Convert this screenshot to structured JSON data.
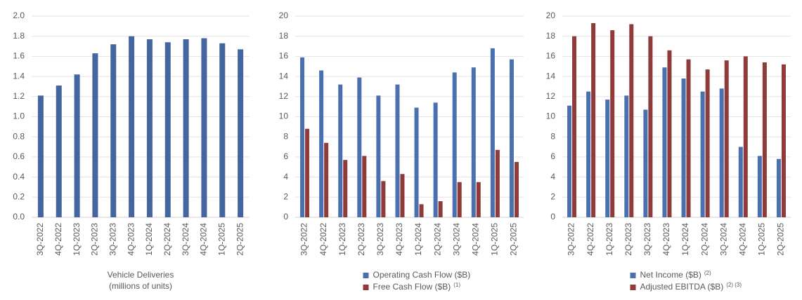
{
  "chart_data": [
    {
      "type": "bar",
      "categories": [
        "3Q-2022",
        "4Q-2022",
        "1Q-2023",
        "2Q-2023",
        "3Q-2023",
        "4Q-2023",
        "1Q-2024",
        "2Q-2024",
        "3Q-2024",
        "4Q-2024",
        "1Q-2025",
        "2Q-2025"
      ],
      "series": [
        {
          "name": null,
          "color": "#44659e",
          "values": [
            1.21,
            1.31,
            1.42,
            1.63,
            1.72,
            1.8,
            1.77,
            1.74,
            1.77,
            1.78,
            1.73,
            1.67
          ]
        }
      ],
      "xlabel": [
        "Vehicle Deliveries",
        "(millions of units)"
      ],
      "ylim": [
        0,
        2
      ],
      "yticks": [
        {
          "value": 0,
          "label": "0.0"
        },
        0.2,
        0.4,
        0.6,
        0.8,
        {
          "value": 1,
          "label": "1.0"
        },
        1.2,
        1.4,
        1.6,
        1.8,
        {
          "value": 2,
          "label": "2.0"
        }
      ],
      "grid": true
    },
    {
      "type": "bar",
      "categories": [
        "3Q-2022",
        "4Q-2022",
        "1Q-2023",
        "2Q-2023",
        "3Q-2023",
        "4Q-2023",
        "1Q-2024",
        "2Q-2024",
        "3Q-2024",
        "4Q-2024",
        "1Q-2025",
        "2Q-2025"
      ],
      "series": [
        {
          "name": "Operating Cash Flow ($B)",
          "color": "#4a70b0",
          "values": [
            15.9,
            14.6,
            13.2,
            13.9,
            12.1,
            13.2,
            10.9,
            11.4,
            14.4,
            14.9,
            16.8,
            15.7
          ]
        },
        {
          "name": "Free Cash Flow ($B)",
          "note": "(1)",
          "color": "#8e3b3a",
          "values": [
            8.8,
            7.4,
            5.7,
            6.1,
            3.6,
            4.3,
            1.3,
            1.6,
            3.5,
            3.5,
            6.7,
            5.5
          ]
        }
      ],
      "ylim": [
        0,
        20
      ],
      "yticks": [
        0,
        2,
        4,
        6,
        8,
        10,
        12,
        14,
        16,
        18,
        20
      ],
      "grid": true
    },
    {
      "type": "bar",
      "categories": [
        "3Q-2022",
        "4Q-2022",
        "1Q-2023",
        "2Q-2023",
        "3Q-2023",
        "4Q-2023",
        "1Q-2024",
        "2Q-2024",
        "3Q-2024",
        "4Q-2024",
        "1Q-2025",
        "2Q-2025"
      ],
      "series": [
        {
          "name": "Net Income ($B)",
          "note": "(2)",
          "color": "#4a70b0",
          "values": [
            11.1,
            12.5,
            11.7,
            12.1,
            10.7,
            14.9,
            13.8,
            12.5,
            12.8,
            7.0,
            6.1,
            5.8
          ]
        },
        {
          "name": "Adjusted EBITDA ($B)",
          "note": "(2) (3)",
          "color": "#8e3b3a",
          "values": [
            18.0,
            19.3,
            18.6,
            19.2,
            18.0,
            16.6,
            15.7,
            14.7,
            15.6,
            16.0,
            15.4,
            15.2
          ]
        }
      ],
      "ylim": [
        0,
        20
      ],
      "yticks": [
        0,
        2,
        4,
        6,
        8,
        10,
        12,
        14,
        16,
        18,
        20
      ],
      "grid": true
    }
  ]
}
